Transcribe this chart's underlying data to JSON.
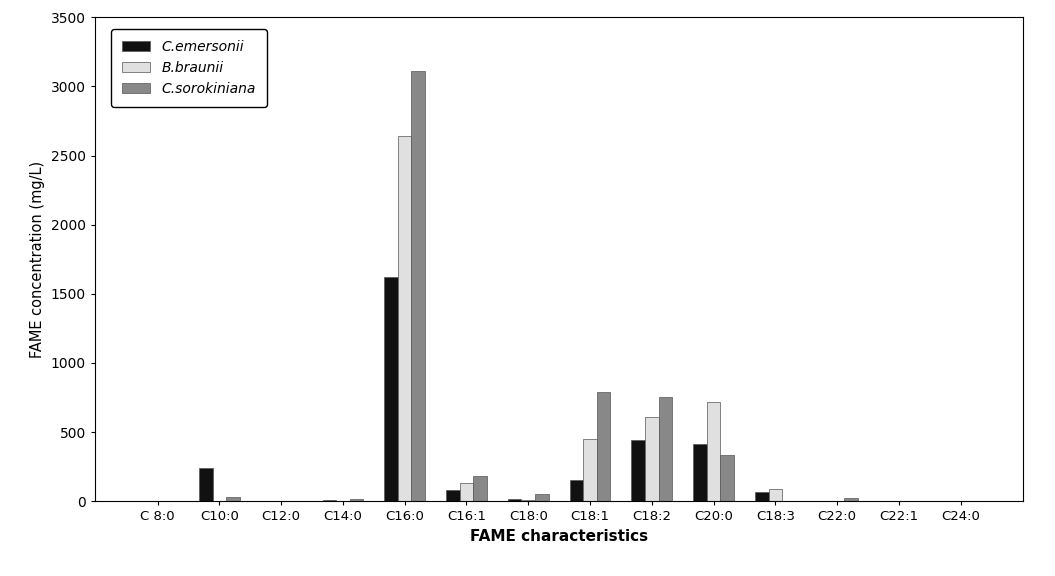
{
  "categories": [
    "C 8:0",
    "C10:0",
    "C12:0",
    "C14:0",
    "C16:0",
    "C16:1",
    "C18:0",
    "C18:1",
    "C18:2",
    "C20:0",
    "C18:3",
    "C22:0",
    "C22:1",
    "C24:0"
  ],
  "series": {
    "C.emersonii": [
      0,
      240,
      0,
      5,
      1620,
      80,
      15,
      155,
      440,
      410,
      65,
      0,
      0,
      0
    ],
    "B.braunii": [
      0,
      0,
      0,
      0,
      2640,
      130,
      5,
      450,
      610,
      720,
      90,
      0,
      0,
      0
    ],
    "C.sorokiniana": [
      0,
      30,
      0,
      15,
      3110,
      185,
      55,
      790,
      755,
      335,
      0,
      20,
      0,
      0
    ]
  },
  "colors": {
    "C.emersonii": "#111111",
    "B.braunii": "#e0e0e0",
    "C.sorokiniana": "#888888"
  },
  "legend_labels": {
    "C.emersonii": "C.emersonii",
    "B.braunii": "B.braunii",
    "C.sorokiniana": "C.sorokiniana"
  },
  "ylabel": "FAME concentration (mg/L)",
  "xlabel": "FAME characteristics",
  "ylim": [
    0,
    3500
  ],
  "yticks": [
    0,
    500,
    1000,
    1500,
    2000,
    2500,
    3000,
    3500
  ],
  "bar_width": 0.22,
  "background_color": "#ffffff",
  "edge_color": "#555555"
}
